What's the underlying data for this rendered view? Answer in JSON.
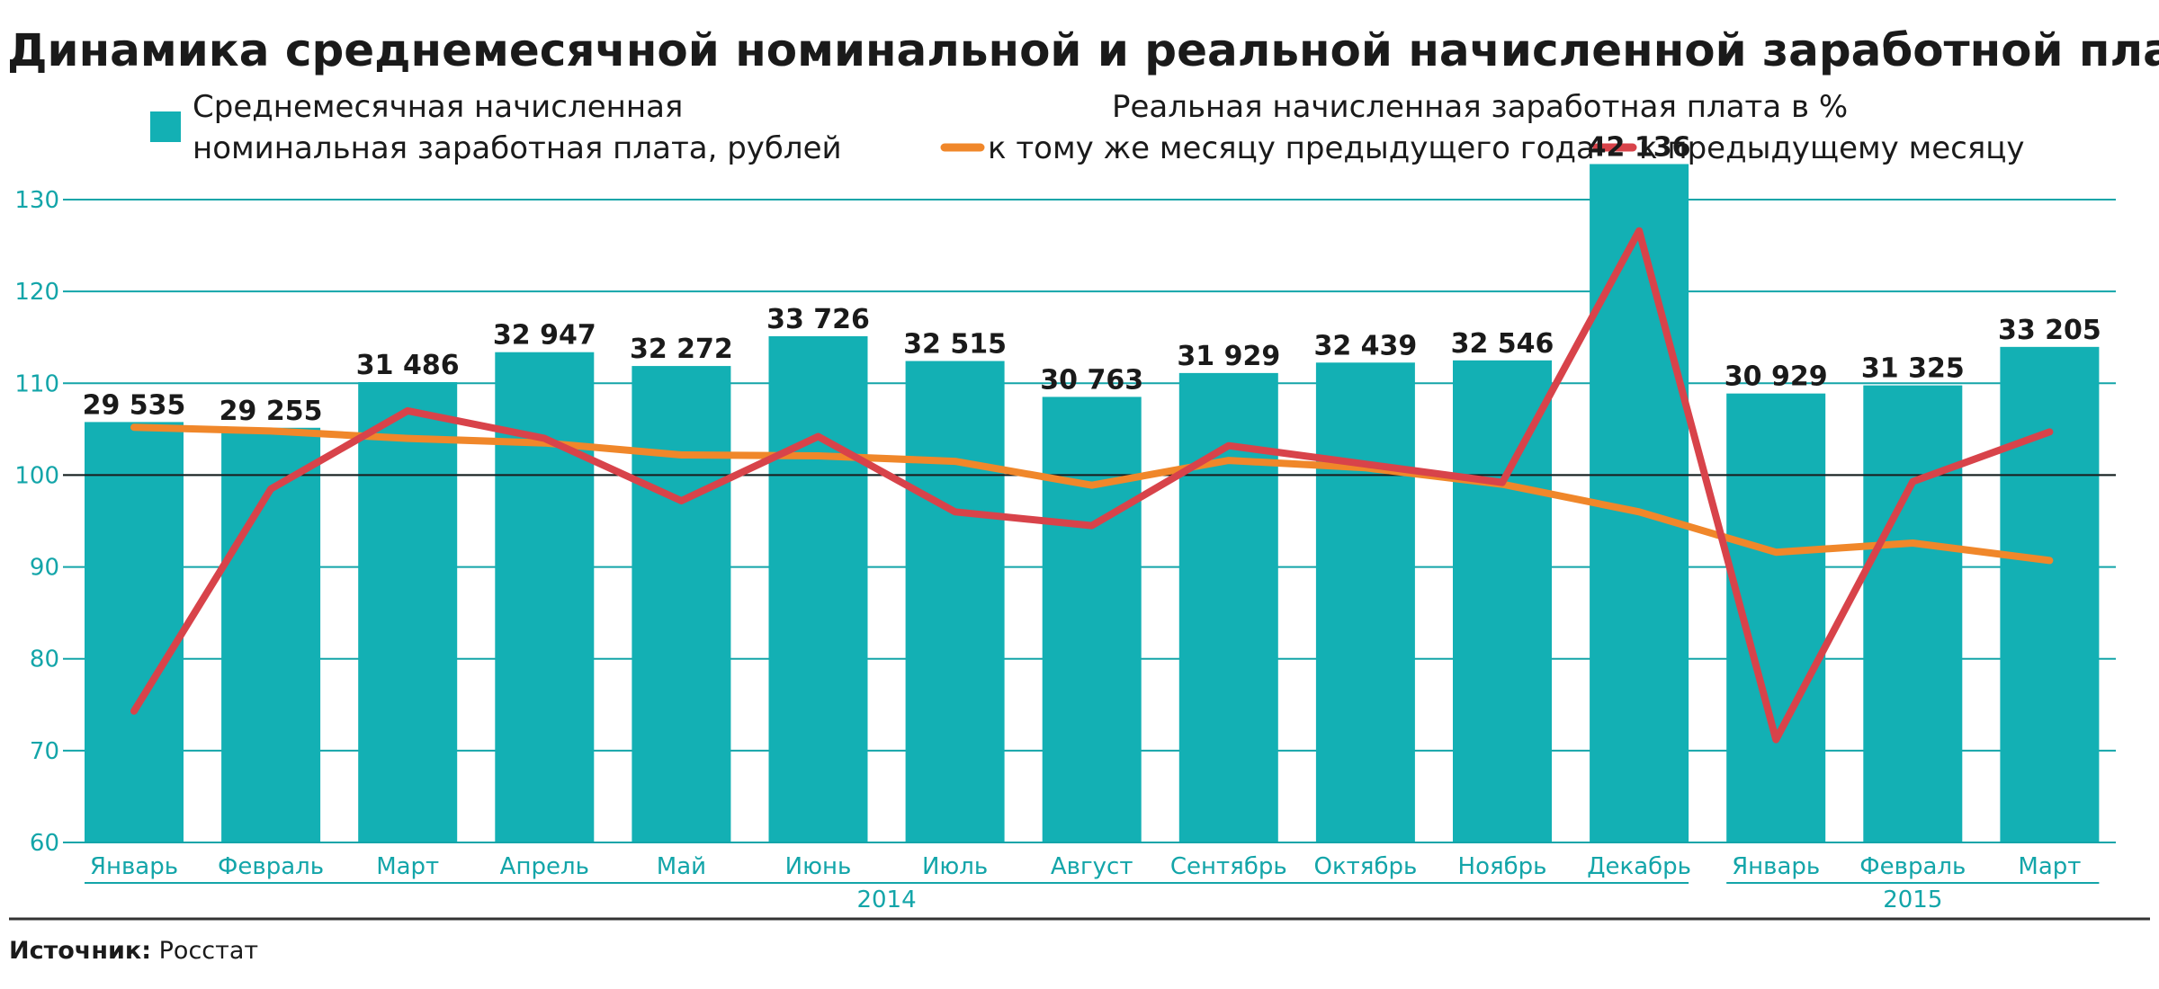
{
  "chart_data": {
    "type": "bar",
    "title": "Динамика среднемесячной номинальной и реальной начисленной заработной платы",
    "categories": [
      "Январь",
      "Февраль",
      "Март",
      "Апрель",
      "Май",
      "Июнь",
      "Июль",
      "Август",
      "Сентябрь",
      "Октябрь",
      "Ноябрь",
      "Декабрь",
      "Январь",
      "Февраль",
      "Март"
    ],
    "groups": [
      {
        "label": "2014",
        "from": 0,
        "to": 11
      },
      {
        "label": "2015",
        "from": 12,
        "to": 14
      }
    ],
    "ylim": [
      60,
      130
    ],
    "yticks": [
      60,
      70,
      80,
      90,
      100,
      110,
      120,
      130
    ],
    "reference_line": 100,
    "bars": {
      "name": "Среднемесячная начисленная номинальная заработная плата, рублей",
      "name_lines": [
        "Среднемесячная начисленная",
        "номинальная заработная плата, рублей"
      ],
      "values": [
        29535,
        29255,
        31486,
        32947,
        32272,
        33726,
        32515,
        30763,
        31929,
        32439,
        32546,
        42136,
        30929,
        31325,
        33205
      ],
      "labels": [
        "29 535",
        "29 255",
        "31 486",
        "32 947",
        "32 272",
        "33 726",
        "32 515",
        "30 763",
        "31 929",
        "32 439",
        "32 546",
        "42 136",
        "30 929",
        "31 325",
        "33 205"
      ],
      "color": "#13b0b4"
    },
    "lines_group_title": "Реальная начисленная заработная плата в %",
    "series": [
      {
        "name": "к тому же месяцу предыдущего года",
        "color": "#f0872a",
        "values": [
          105.2,
          104.8,
          104.0,
          103.5,
          102.2,
          102.1,
          101.5,
          98.9,
          101.6,
          100.8,
          99.0,
          96.0,
          91.6,
          92.6,
          90.7
        ]
      },
      {
        "name": "к предыдущему месяцу",
        "color": "#d8434a",
        "values": [
          74.3,
          98.5,
          107.0,
          104.0,
          97.2,
          104.2,
          96.0,
          94.5,
          103.2,
          101.2,
          99.2,
          126.6,
          71.2,
          99.3,
          104.7
        ]
      }
    ],
    "grid_color": "#13a5a9"
  },
  "source_label": "Источник:",
  "source_value": "Росстат"
}
